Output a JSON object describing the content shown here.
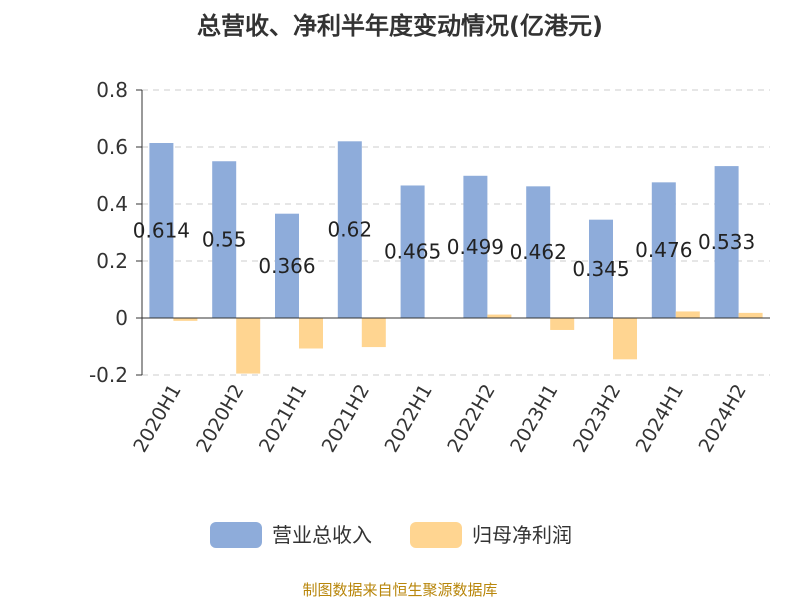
{
  "chart_data": {
    "type": "bar",
    "title": "总营收、净利半年度变动情况(亿港元)",
    "categories": [
      "2020H1",
      "2020H2",
      "2021H1",
      "2021H2",
      "2022H1",
      "2022H2",
      "2023H1",
      "2023H2",
      "2024H1",
      "2024H2"
    ],
    "series": [
      {
        "name": "营业总收入",
        "color": "#8EACDA",
        "values": [
          0.614,
          0.55,
          0.366,
          0.62,
          0.465,
          0.499,
          0.462,
          0.345,
          0.476,
          0.533
        ]
      },
      {
        "name": "归母净利润",
        "color": "#FFD591",
        "values": [
          -0.01,
          -0.195,
          -0.107,
          -0.102,
          0.0,
          0.012,
          -0.042,
          -0.145,
          0.023,
          0.018
        ]
      }
    ],
    "data_labels": [
      "0.614",
      "0.55",
      "0.366",
      "0.62",
      "0.465",
      "0.499",
      "0.462",
      "0.345",
      "0.476",
      "0.533"
    ],
    "ylim": [
      -0.2,
      0.8
    ],
    "yticks": [
      -0.2,
      0,
      0.2,
      0.4,
      0.6,
      0.8
    ],
    "ytick_labels": [
      "-0.2",
      "0",
      "0.2",
      "0.4",
      "0.6",
      "0.8"
    ],
    "grid": true,
    "legend_position": "bottom"
  },
  "source_text": "制图数据来自恒生聚源数据库"
}
